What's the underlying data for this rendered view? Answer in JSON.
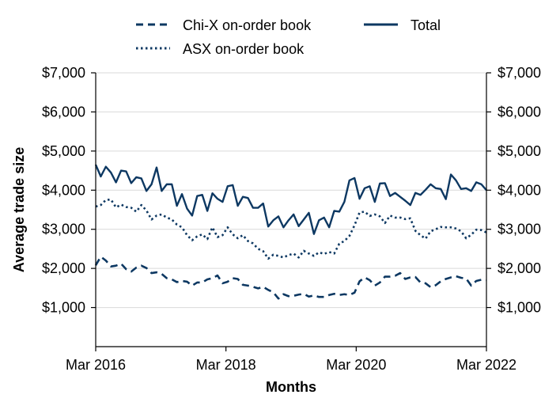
{
  "chart_data": {
    "type": "line",
    "xlabel": "Months",
    "ylabel": "Average trade size",
    "ylim": [
      0,
      7000
    ],
    "y_ticks": [
      1000,
      2000,
      3000,
      4000,
      5000,
      6000,
      7000
    ],
    "y_tick_labels": [
      "$1,000",
      "$2,000",
      "$3,000",
      "$4,000",
      "$5,000",
      "$6,000",
      "$7,000"
    ],
    "right_y_tick_labels": [
      "$1,000",
      "$2,000",
      "$3,000",
      "$4,000",
      "$5,000",
      "$6,000",
      "$7,000"
    ],
    "x_tick_labels": [
      "Mar 2016",
      "Mar 2018",
      "Mar 2020",
      "Mar 2022"
    ],
    "x_start": "2016-03",
    "x_end": "2022-03",
    "grid": "horizontal",
    "legend_position": "top",
    "series_color": "#0d3862",
    "series": [
      {
        "name": "Chi-X on-order book",
        "style": "dashed",
        "values": [
          2080,
          2300,
          2200,
          2050,
          2070,
          2120,
          1980,
          1920,
          2020,
          2070,
          2010,
          1880,
          1900,
          1860,
          1750,
          1720,
          1650,
          1680,
          1660,
          1560,
          1640,
          1640,
          1720,
          1750,
          1820,
          1620,
          1660,
          1750,
          1730,
          1580,
          1560,
          1530,
          1490,
          1530,
          1450,
          1390,
          1230,
          1340,
          1290,
          1300,
          1330,
          1350,
          1280,
          1310,
          1270,
          1270,
          1320,
          1350,
          1320,
          1340,
          1320,
          1380,
          1670,
          1770,
          1700,
          1560,
          1640,
          1790,
          1790,
          1810,
          1880,
          1730,
          1770,
          1780,
          1640,
          1620,
          1520,
          1570,
          1670,
          1730,
          1770,
          1800,
          1760,
          1740,
          1560,
          1680,
          1710,
          1700
        ]
      },
      {
        "name": "ASX on-order book",
        "style": "dotted",
        "values": [
          3580,
          3620,
          3750,
          3760,
          3560,
          3630,
          3570,
          3550,
          3450,
          3620,
          3480,
          3250,
          3350,
          3380,
          3300,
          3250,
          3120,
          3050,
          2850,
          2720,
          2820,
          2870,
          2750,
          3050,
          2800,
          2850,
          3050,
          2870,
          2770,
          2850,
          2700,
          2640,
          2500,
          2440,
          2250,
          2350,
          2320,
          2280,
          2340,
          2380,
          2280,
          2450,
          2380,
          2320,
          2410,
          2370,
          2420,
          2380,
          2630,
          2700,
          2830,
          3100,
          3430,
          3450,
          3340,
          3380,
          3330,
          3160,
          3350,
          3300,
          3300,
          3260,
          3280,
          2960,
          2850,
          2760,
          2950,
          3000,
          3060,
          3050,
          3050,
          3020,
          2950,
          2770,
          2860,
          2990,
          2980,
          2920
        ]
      },
      {
        "name": "Total",
        "style": "solid",
        "values": [
          4650,
          4350,
          4600,
          4450,
          4200,
          4500,
          4480,
          4180,
          4330,
          4300,
          3980,
          4150,
          4580,
          3980,
          4150,
          4150,
          3600,
          3900,
          3530,
          3350,
          3850,
          3880,
          3470,
          3920,
          3780,
          3700,
          4100,
          4130,
          3600,
          3830,
          3800,
          3550,
          3550,
          3660,
          3070,
          3230,
          3330,
          3050,
          3230,
          3380,
          3080,
          3250,
          3420,
          2880,
          3230,
          3300,
          3050,
          3470,
          3450,
          3700,
          4250,
          4310,
          3780,
          4050,
          4100,
          3700,
          4170,
          4180,
          3850,
          3930,
          3830,
          3730,
          3620,
          3930,
          3880,
          4010,
          4150,
          4050,
          4030,
          3770,
          4400,
          4250,
          4030,
          4050,
          3980,
          4200,
          4150,
          4000
        ]
      }
    ]
  }
}
